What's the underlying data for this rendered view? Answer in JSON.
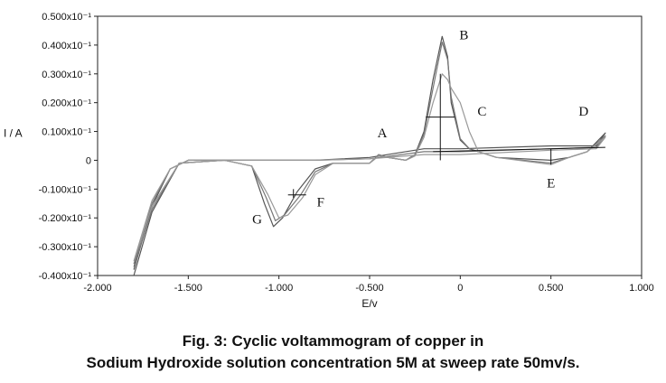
{
  "caption": {
    "line1": "Fig. 3: Cyclic voltammogram of copper in",
    "line2": "Sodium Hydroxide solution concentration 5M at sweep rate 50mv/s."
  },
  "chart_data": {
    "type": "line",
    "title": "",
    "xlabel": "E/v",
    "ylabel": "I / A",
    "xlim": [
      -2.0,
      1.0
    ],
    "ylim": [
      -0.4,
      0.5
    ],
    "x_ticks": [
      {
        "value": -2.0,
        "label": "-2.000"
      },
      {
        "value": -1.5,
        "label": "-1.500"
      },
      {
        "value": -1.0,
        "label": "-1.000"
      },
      {
        "value": -0.5,
        "label": "-0.500"
      },
      {
        "value": 0.0,
        "label": "0"
      },
      {
        "value": 0.5,
        "label": "0.500"
      },
      {
        "value": 1.0,
        "label": "1.000"
      }
    ],
    "y_ticks": [
      {
        "value": 0.5,
        "label": "0.500x10⁻¹"
      },
      {
        "value": 0.4,
        "label": "0.400x10⁻¹"
      },
      {
        "value": 0.3,
        "label": "0.300x10⁻¹"
      },
      {
        "value": 0.2,
        "label": "0.200x10⁻¹"
      },
      {
        "value": 0.1,
        "label": "0.100x10⁻¹"
      },
      {
        "value": 0.0,
        "label": "0"
      },
      {
        "value": -0.1,
        "label": "-0.100x10⁻¹"
      },
      {
        "value": -0.2,
        "label": "-0.200x10⁻¹"
      },
      {
        "value": -0.3,
        "label": "-0.300x10⁻¹"
      },
      {
        "value": -0.4,
        "label": "-0.400x10⁻¹"
      }
    ],
    "grid": false,
    "legend": "none",
    "annotations": [
      {
        "text": "A",
        "x": -0.43,
        "y": 0.08
      },
      {
        "text": "B",
        "x": 0.02,
        "y": 0.42
      },
      {
        "text": "C",
        "x": 0.12,
        "y": 0.155
      },
      {
        "text": "D",
        "x": 0.68,
        "y": 0.155
      },
      {
        "text": "E",
        "x": 0.5,
        "y": -0.095
      },
      {
        "text": "F",
        "x": -0.77,
        "y": -0.16
      },
      {
        "text": "G",
        "x": -1.12,
        "y": -0.22
      }
    ],
    "series": [
      {
        "color": "#555555",
        "points": [
          [
            -1.8,
            -0.38
          ],
          [
            -1.7,
            -0.16
          ],
          [
            -1.6,
            -0.03
          ],
          [
            -1.5,
            0.0
          ],
          [
            -1.3,
            0.0
          ],
          [
            -1.15,
            -0.02
          ],
          [
            -1.08,
            -0.15
          ],
          [
            -1.03,
            -0.23
          ],
          [
            -0.98,
            -0.2
          ],
          [
            -0.9,
            -0.11
          ],
          [
            -0.8,
            -0.03
          ],
          [
            -0.7,
            -0.01
          ],
          [
            -0.5,
            -0.01
          ],
          [
            -0.45,
            0.015
          ],
          [
            -0.4,
            0.01
          ],
          [
            -0.3,
            0.0
          ],
          [
            -0.25,
            0.02
          ],
          [
            -0.2,
            0.1
          ],
          [
            -0.15,
            0.28
          ],
          [
            -0.1,
            0.43
          ],
          [
            -0.07,
            0.36
          ],
          [
            -0.05,
            0.2
          ],
          [
            0.0,
            0.07
          ],
          [
            0.05,
            0.04
          ],
          [
            0.2,
            0.01
          ],
          [
            0.5,
            0.0
          ],
          [
            0.6,
            0.01
          ],
          [
            0.7,
            0.03
          ],
          [
            0.8,
            0.095
          ],
          [
            0.75,
            0.05
          ],
          [
            0.5,
            0.05
          ],
          [
            0.0,
            0.04
          ],
          [
            -0.2,
            0.04
          ],
          [
            -0.5,
            0.01
          ],
          [
            -0.8,
            0.0
          ],
          [
            -1.0,
            0.0
          ],
          [
            -1.3,
            0.0
          ],
          [
            -1.55,
            -0.01
          ],
          [
            -1.7,
            -0.18
          ],
          [
            -1.8,
            -0.4
          ]
        ]
      },
      {
        "color": "#777777",
        "points": [
          [
            -1.8,
            -0.36
          ],
          [
            -1.7,
            -0.15
          ],
          [
            -1.6,
            -0.03
          ],
          [
            -1.5,
            0.0
          ],
          [
            -1.3,
            0.0
          ],
          [
            -1.15,
            -0.02
          ],
          [
            -1.07,
            -0.13
          ],
          [
            -1.02,
            -0.21
          ],
          [
            -0.97,
            -0.19
          ],
          [
            -0.88,
            -0.12
          ],
          [
            -0.8,
            -0.04
          ],
          [
            -0.7,
            -0.01
          ],
          [
            -0.5,
            -0.01
          ],
          [
            -0.45,
            0.02
          ],
          [
            -0.4,
            0.01
          ],
          [
            -0.3,
            0.0
          ],
          [
            -0.25,
            0.02
          ],
          [
            -0.2,
            0.09
          ],
          [
            -0.15,
            0.25
          ],
          [
            -0.1,
            0.41
          ],
          [
            -0.07,
            0.35
          ],
          [
            -0.05,
            0.22
          ],
          [
            0.0,
            0.075
          ],
          [
            0.05,
            0.04
          ],
          [
            0.2,
            0.01
          ],
          [
            0.5,
            -0.01
          ],
          [
            0.6,
            0.01
          ],
          [
            0.7,
            0.03
          ],
          [
            0.8,
            0.085
          ],
          [
            0.75,
            0.045
          ],
          [
            0.5,
            0.04
          ],
          [
            0.0,
            0.03
          ],
          [
            -0.2,
            0.03
          ],
          [
            -0.5,
            0.005
          ],
          [
            -0.8,
            0.0
          ],
          [
            -1.0,
            0.0
          ],
          [
            -1.3,
            0.0
          ],
          [
            -1.55,
            -0.01
          ],
          [
            -1.7,
            -0.17
          ],
          [
            -1.8,
            -0.37
          ]
        ]
      },
      {
        "color": "#999999",
        "points": [
          [
            -1.8,
            -0.35
          ],
          [
            -1.7,
            -0.14
          ],
          [
            -1.6,
            -0.03
          ],
          [
            -1.5,
            0.0
          ],
          [
            -1.3,
            0.0
          ],
          [
            -1.15,
            -0.02
          ],
          [
            -1.06,
            -0.12
          ],
          [
            -1.0,
            -0.2
          ],
          [
            -0.95,
            -0.19
          ],
          [
            -0.87,
            -0.13
          ],
          [
            -0.8,
            -0.05
          ],
          [
            -0.7,
            -0.01
          ],
          [
            -0.5,
            -0.01
          ],
          [
            -0.45,
            0.015
          ],
          [
            -0.4,
            0.01
          ],
          [
            -0.3,
            0.0
          ],
          [
            -0.25,
            0.015
          ],
          [
            -0.2,
            0.08
          ],
          [
            -0.15,
            0.2
          ],
          [
            -0.1,
            0.3
          ],
          [
            -0.07,
            0.28
          ],
          [
            -0.05,
            0.25
          ],
          [
            0.0,
            0.2
          ],
          [
            0.05,
            0.1
          ],
          [
            0.1,
            0.03
          ],
          [
            0.2,
            0.01
          ],
          [
            0.5,
            -0.015
          ],
          [
            0.6,
            0.01
          ],
          [
            0.7,
            0.03
          ],
          [
            0.8,
            0.08
          ],
          [
            0.75,
            0.04
          ],
          [
            0.5,
            0.035
          ],
          [
            0.0,
            0.02
          ],
          [
            -0.2,
            0.02
          ],
          [
            -0.5,
            0.005
          ],
          [
            -0.8,
            0.0
          ],
          [
            -1.0,
            0.0
          ],
          [
            -1.3,
            0.0
          ],
          [
            -1.55,
            -0.01
          ],
          [
            -1.7,
            -0.16
          ],
          [
            -1.8,
            -0.35
          ]
        ]
      }
    ]
  }
}
